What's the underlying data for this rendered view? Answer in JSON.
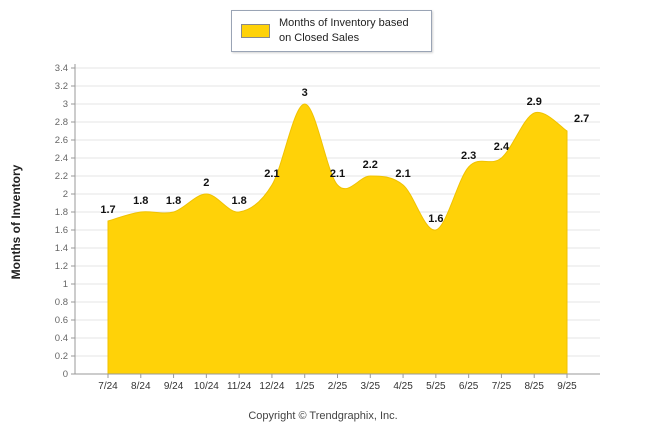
{
  "legend": {
    "label": "Months of Inventory based on Closed Sales"
  },
  "footer": "Copyright © Trendgraphix, Inc.",
  "chart_data": {
    "type": "area",
    "title": "Months of Inventory based on Closed Sales",
    "ylabel": "Months of Inventory",
    "xlabel": "",
    "categories": [
      "7/24",
      "8/24",
      "9/24",
      "10/24",
      "11/24",
      "12/24",
      "1/25",
      "2/25",
      "3/25",
      "4/25",
      "5/25",
      "6/25",
      "7/25",
      "8/25",
      "9/25"
    ],
    "values": [
      1.7,
      1.8,
      1.8,
      2,
      1.8,
      2.1,
      3,
      2.1,
      2.2,
      2.1,
      1.6,
      2.3,
      2.4,
      2.9,
      2.7
    ],
    "point_labels": [
      "1.7",
      "1.8",
      "1.8",
      "2",
      "1.8",
      "2.1",
      "3",
      "2.1",
      "2.2",
      "2.1",
      "1.6",
      "2.3",
      "2.4",
      "2.9",
      "2.7"
    ],
    "ylim": [
      0,
      3.4
    ],
    "ytick_step": 0.2,
    "grid": "horizontal",
    "legend_position": "top",
    "area_color": "#FFD208",
    "area_edge_color": "#F0C200",
    "smooth": true
  }
}
